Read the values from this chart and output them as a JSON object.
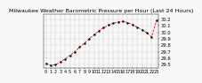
{
  "title": "Milwaukee Weather Barometric Pressure per Hour (Last 24 Hours)",
  "hours": [
    0,
    1,
    2,
    3,
    4,
    5,
    6,
    7,
    8,
    9,
    10,
    11,
    12,
    13,
    14,
    15,
    16,
    17,
    18,
    19,
    20,
    21,
    22,
    23
  ],
  "pressure": [
    29.52,
    29.49,
    29.5,
    29.54,
    29.59,
    29.64,
    29.7,
    29.77,
    29.83,
    29.9,
    29.96,
    30.02,
    30.07,
    30.11,
    30.14,
    30.16,
    30.17,
    30.15,
    30.12,
    30.08,
    30.04,
    29.99,
    29.93,
    30.18
  ],
  "ylim": [
    29.45,
    30.28
  ],
  "yticks": [
    29.5,
    29.6,
    29.7,
    29.8,
    29.9,
    30.0,
    30.1,
    30.2
  ],
  "line_color": "#cc0000",
  "marker_color": "#000000",
  "bg_color": "#f8f8f8",
  "grid_color": "#999999",
  "title_color": "#000000",
  "title_fontsize": 4.5,
  "tick_fontsize": 3.5,
  "ylabel_fontsize": 3.8
}
